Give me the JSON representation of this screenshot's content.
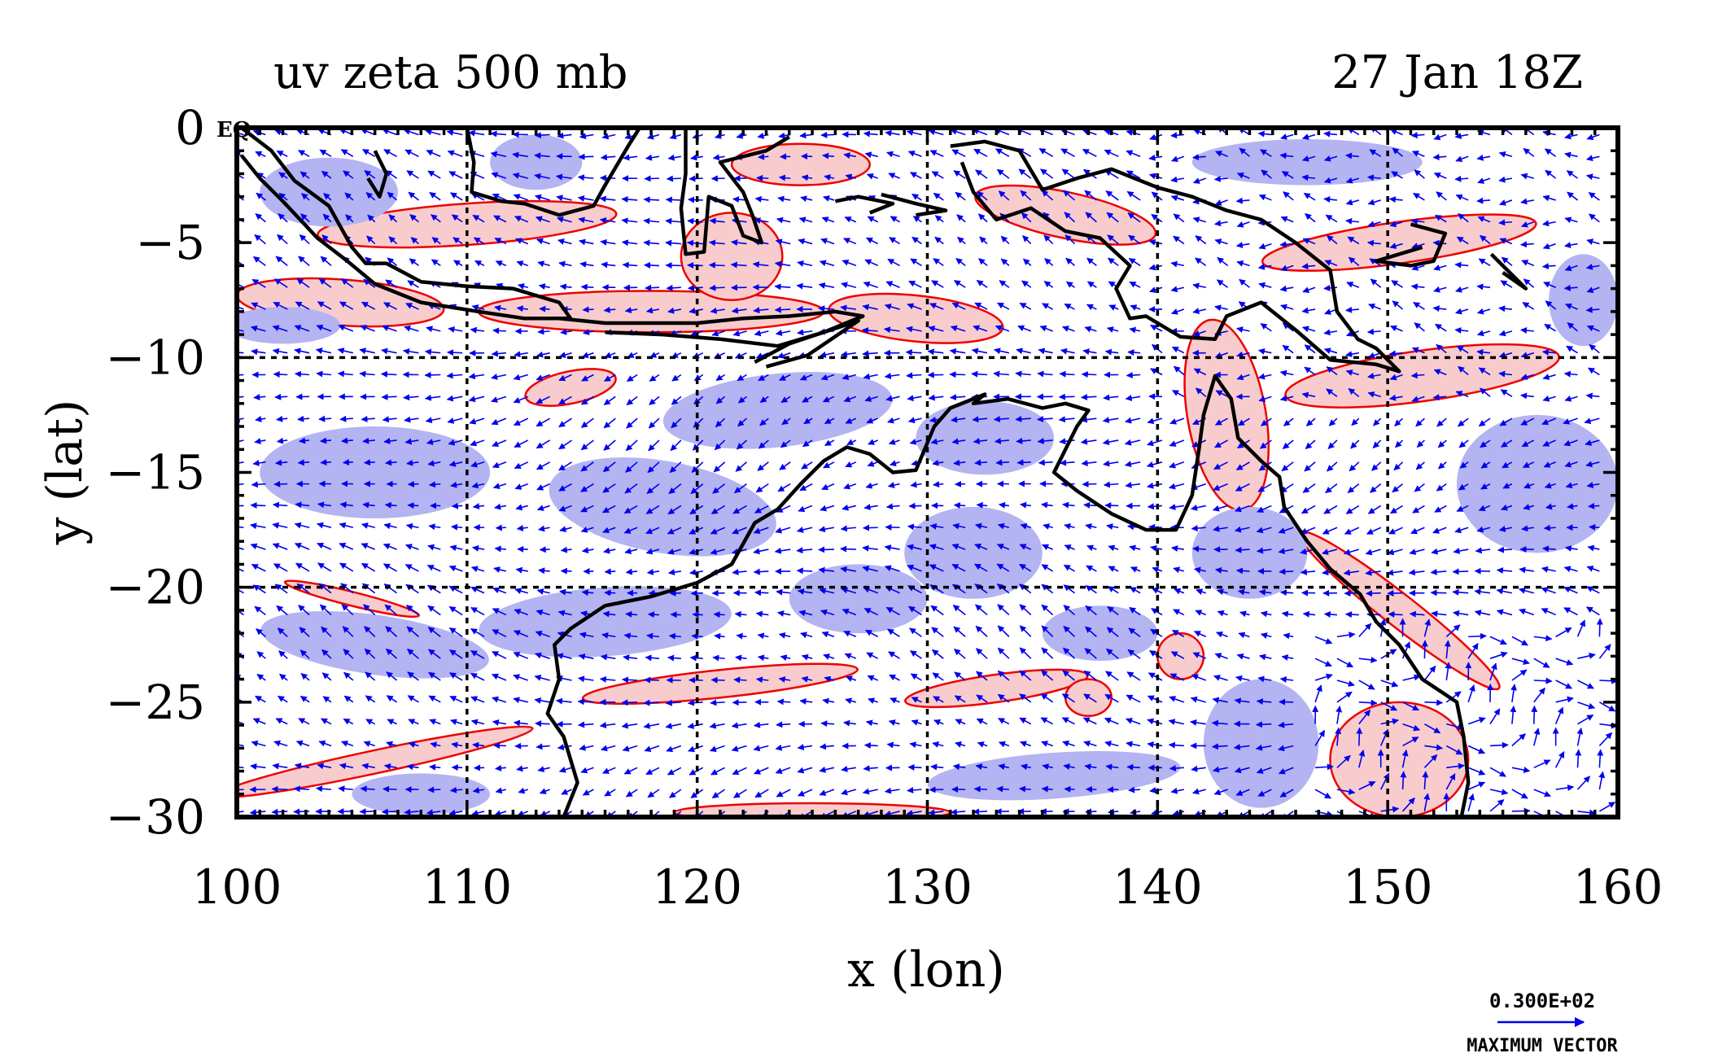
{
  "title_left": "uv zeta 500 mb",
  "title_right": "27 Jan 18Z",
  "equator_label": "EQ",
  "colors": {
    "positive_fill": "#f8cccc",
    "negative_fill": "#b4b4f2",
    "contour_red": "#ee0000",
    "vector_blue": "#0000ee",
    "coast": "#000000",
    "grid": "#000000"
  },
  "legend": {
    "value_label": "0.300E+02",
    "caption": "MAXIMUM VECTOR",
    "max_vector": 30
  },
  "chart_data": {
    "type": "map",
    "xlabel": "x (lon)",
    "ylabel": "y (lat)",
    "xlim": [
      100,
      160
    ],
    "ylim": [
      -30,
      0
    ],
    "xticks": [
      100,
      110,
      120,
      130,
      140,
      150,
      160
    ],
    "yticks": [
      0,
      -5,
      -10,
      -15,
      -20,
      -25,
      -30
    ],
    "xtick_labels": [
      "100",
      "110",
      "120",
      "130",
      "140",
      "150",
      "160"
    ],
    "ytick_labels": [
      "0",
      "−5",
      "−10",
      "−15",
      "−20",
      "−25",
      "−30"
    ],
    "gridlines": {
      "lon": [
        110,
        120,
        130,
        140,
        150
      ],
      "lat": [
        -10,
        -20
      ]
    },
    "coastlines": [
      [
        [
          100.2,
          0.0
        ],
        [
          101.5,
          -1.0
        ],
        [
          102.5,
          -2.3
        ],
        [
          104.0,
          -3.4
        ],
        [
          105.0,
          -5.2
        ],
        [
          105.6,
          -5.9
        ],
        [
          106.5,
          -5.9
        ],
        [
          108.0,
          -6.7
        ],
        [
          110.0,
          -6.9
        ],
        [
          112.0,
          -7.0
        ],
        [
          114.0,
          -7.6
        ],
        [
          114.5,
          -8.3
        ],
        [
          112.5,
          -8.3
        ],
        [
          110.5,
          -8.0
        ],
        [
          108.0,
          -7.6
        ],
        [
          106.0,
          -6.8
        ],
        [
          104.8,
          -5.8
        ],
        [
          103.5,
          -4.8
        ],
        [
          102.0,
          -3.2
        ],
        [
          101.0,
          -2.2
        ],
        [
          100.2,
          -1.2
        ]
      ],
      [
        [
          106.0,
          -1.0
        ],
        [
          106.5,
          -2.0
        ],
        [
          106.2,
          -3.0
        ],
        [
          105.7,
          -2.2
        ]
      ],
      [
        [
          114.0,
          -8.3
        ],
        [
          116.0,
          -8.5
        ],
        [
          118.0,
          -8.5
        ],
        [
          120.0,
          -8.5
        ],
        [
          122.0,
          -8.3
        ],
        [
          124.0,
          -8.2
        ],
        [
          126.0,
          -8.0
        ],
        [
          127.2,
          -8.2
        ],
        [
          125.5,
          -8.9
        ],
        [
          123.5,
          -9.5
        ],
        [
          121.0,
          -9.2
        ],
        [
          118.5,
          -9.0
        ],
        [
          116.0,
          -8.9
        ]
      ],
      [
        [
          122.5,
          -10.2
        ],
        [
          124.0,
          -9.4
        ],
        [
          125.5,
          -8.9
        ],
        [
          127.0,
          -8.4
        ],
        [
          124.8,
          -9.9
        ],
        [
          123.0,
          -10.4
        ]
      ],
      [
        [
          110.0,
          0.0
        ],
        [
          110.3,
          -1.5
        ],
        [
          110.2,
          -2.8
        ],
        [
          111.5,
          -3.2
        ],
        [
          112.5,
          -3.3
        ],
        [
          114.0,
          -3.8
        ],
        [
          115.5,
          -3.4
        ],
        [
          116.0,
          -2.5
        ],
        [
          117.0,
          -0.8
        ],
        [
          117.5,
          0.0
        ]
      ],
      [
        [
          119.5,
          0.0
        ],
        [
          119.5,
          -2.0
        ],
        [
          119.3,
          -3.5
        ],
        [
          119.5,
          -5.5
        ],
        [
          120.3,
          -5.4
        ],
        [
          120.5,
          -3.0
        ],
        [
          121.5,
          -3.4
        ],
        [
          122.0,
          -4.7
        ],
        [
          122.8,
          -5.0
        ],
        [
          122.4,
          -3.8
        ],
        [
          122.0,
          -2.8
        ],
        [
          121.0,
          -1.5
        ],
        [
          123.0,
          -1.0
        ],
        [
          124.0,
          -0.4
        ]
      ],
      [
        [
          126.0,
          -3.2
        ],
        [
          127.0,
          -3.0
        ],
        [
          128.5,
          -3.3
        ],
        [
          127.5,
          -3.7
        ]
      ],
      [
        [
          128.0,
          -2.9
        ],
        [
          129.5,
          -3.3
        ],
        [
          130.8,
          -3.6
        ],
        [
          129.5,
          -3.8
        ]
      ],
      [
        [
          131.0,
          -0.8
        ],
        [
          132.5,
          -0.6
        ],
        [
          134.0,
          -1.0
        ],
        [
          135.0,
          -2.7
        ],
        [
          136.5,
          -2.2
        ],
        [
          138.0,
          -1.8
        ],
        [
          140.0,
          -2.6
        ],
        [
          141.5,
          -3.0
        ],
        [
          143.0,
          -3.6
        ],
        [
          144.5,
          -4.0
        ],
        [
          146.0,
          -5.0
        ],
        [
          147.5,
          -6.2
        ],
        [
          147.8,
          -8.0
        ],
        [
          148.7,
          -9.2
        ],
        [
          149.5,
          -9.6
        ],
        [
          150.5,
          -10.6
        ],
        [
          149.5,
          -10.3
        ],
        [
          147.5,
          -10.1
        ],
        [
          146.0,
          -8.8
        ],
        [
          144.5,
          -7.6
        ],
        [
          143.0,
          -8.2
        ],
        [
          142.5,
          -9.2
        ],
        [
          141.0,
          -9.1
        ],
        [
          139.5,
          -8.2
        ],
        [
          138.8,
          -8.3
        ],
        [
          138.2,
          -7.0
        ],
        [
          138.8,
          -6.0
        ],
        [
          137.5,
          -4.8
        ],
        [
          136.0,
          -4.5
        ],
        [
          134.5,
          -3.5
        ],
        [
          133.0,
          -4.0
        ],
        [
          132.0,
          -2.8
        ],
        [
          131.5,
          -1.5
        ]
      ],
      [
        [
          151.0,
          -4.2
        ],
        [
          152.5,
          -4.6
        ],
        [
          152.0,
          -5.8
        ],
        [
          151.0,
          -6.0
        ],
        [
          149.5,
          -5.8
        ],
        [
          151.5,
          -5.2
        ]
      ],
      [
        [
          154.5,
          -5.5
        ],
        [
          155.5,
          -6.5
        ],
        [
          156.0,
          -7.0
        ],
        [
          155.0,
          -6.3
        ]
      ],
      [
        [
          114.2,
          -30.0
        ],
        [
          114.8,
          -28.5
        ],
        [
          114.2,
          -26.5
        ],
        [
          113.5,
          -25.5
        ],
        [
          114.0,
          -24.0
        ],
        [
          113.8,
          -22.5
        ],
        [
          114.5,
          -21.8
        ],
        [
          116.0,
          -20.8
        ],
        [
          118.0,
          -20.4
        ],
        [
          120.0,
          -19.8
        ],
        [
          121.5,
          -19.0
        ],
        [
          122.5,
          -17.2
        ],
        [
          123.5,
          -16.6
        ],
        [
          124.5,
          -15.5
        ],
        [
          125.5,
          -14.5
        ],
        [
          126.5,
          -13.9
        ],
        [
          127.5,
          -14.2
        ],
        [
          128.5,
          -15.0
        ],
        [
          129.5,
          -14.9
        ],
        [
          130.3,
          -13.0
        ],
        [
          131.0,
          -12.2
        ],
        [
          132.5,
          -11.6
        ],
        [
          132.0,
          -12.0
        ],
        [
          133.5,
          -11.8
        ],
        [
          135.0,
          -12.2
        ],
        [
          136.0,
          -12.0
        ],
        [
          137.0,
          -12.3
        ],
        [
          136.5,
          -13.0
        ],
        [
          136.0,
          -14.0
        ],
        [
          135.5,
          -15.0
        ],
        [
          136.5,
          -15.8
        ],
        [
          138.0,
          -16.8
        ],
        [
          139.5,
          -17.5
        ],
        [
          140.8,
          -17.5
        ],
        [
          141.5,
          -16.0
        ],
        [
          141.8,
          -14.0
        ],
        [
          142.0,
          -12.5
        ],
        [
          142.5,
          -10.8
        ],
        [
          143.2,
          -11.8
        ],
        [
          143.5,
          -13.5
        ],
        [
          144.5,
          -14.5
        ],
        [
          145.3,
          -15.2
        ],
        [
          145.5,
          -16.5
        ],
        [
          146.5,
          -18.0
        ],
        [
          147.5,
          -19.2
        ],
        [
          148.8,
          -20.3
        ],
        [
          149.5,
          -21.5
        ],
        [
          150.5,
          -22.5
        ],
        [
          151.5,
          -24.0
        ],
        [
          153.0,
          -25.0
        ],
        [
          153.3,
          -26.5
        ],
        [
          153.5,
          -28.5
        ],
        [
          153.2,
          -30.0
        ]
      ]
    ],
    "vorticity_positive": [
      {
        "lon": 110.0,
        "lat": -4.2,
        "rx": 6.5,
        "ry": 0.9,
        "rot": -4
      },
      {
        "lon": 104.5,
        "lat": -7.6,
        "rx": 4.5,
        "ry": 1.0,
        "rot": 4
      },
      {
        "lon": 118.0,
        "lat": -8.0,
        "rx": 7.5,
        "ry": 0.9,
        "rot": 0
      },
      {
        "lon": 114.5,
        "lat": -11.3,
        "rx": 2.0,
        "ry": 0.7,
        "rot": -12
      },
      {
        "lon": 121.5,
        "lat": -5.6,
        "rx": 2.2,
        "ry": 1.9,
        "rot": 0
      },
      {
        "lon": 129.5,
        "lat": -8.3,
        "rx": 3.8,
        "ry": 1.0,
        "rot": 6
      },
      {
        "lon": 136.0,
        "lat": -3.8,
        "rx": 4.0,
        "ry": 1.0,
        "rot": 12
      },
      {
        "lon": 124.5,
        "lat": -1.6,
        "rx": 3.0,
        "ry": 0.9,
        "rot": 0
      },
      {
        "lon": 150.5,
        "lat": -5.0,
        "rx": 6.0,
        "ry": 0.9,
        "rot": -8
      },
      {
        "lon": 151.5,
        "lat": -10.8,
        "rx": 6.0,
        "ry": 1.1,
        "rot": -8
      },
      {
        "lon": 143.0,
        "lat": -12.5,
        "rx": 1.7,
        "ry": 4.2,
        "rot": -10
      },
      {
        "lon": 150.5,
        "lat": -21.0,
        "rx": 5.5,
        "ry": 0.7,
        "rot": 38
      },
      {
        "lon": 106.0,
        "lat": -27.6,
        "rx": 7.0,
        "ry": 0.5,
        "rot": -12
      },
      {
        "lon": 121.0,
        "lat": -24.2,
        "rx": 6.0,
        "ry": 0.6,
        "rot": -6
      },
      {
        "lon": 133.0,
        "lat": -24.4,
        "rx": 4.0,
        "ry": 0.6,
        "rot": -8
      },
      {
        "lon": 137.0,
        "lat": -24.8,
        "rx": 1.0,
        "ry": 0.8,
        "rot": 0
      },
      {
        "lon": 141.0,
        "lat": -23.0,
        "rx": 1.0,
        "ry": 1.0,
        "rot": 0
      },
      {
        "lon": 150.5,
        "lat": -27.5,
        "rx": 3.0,
        "ry": 2.5,
        "rot": 0
      },
      {
        "lon": 125.0,
        "lat": -29.8,
        "rx": 6.0,
        "ry": 0.4,
        "rot": 0
      },
      {
        "lon": 105.0,
        "lat": -20.5,
        "rx": 3.0,
        "ry": 0.3,
        "rot": 14
      }
    ],
    "vorticity_negative": [
      {
        "lon": 104.0,
        "lat": -2.8,
        "rx": 3.0,
        "ry": 1.5,
        "rot": 0
      },
      {
        "lon": 102.0,
        "lat": -8.6,
        "rx": 2.5,
        "ry": 0.8,
        "rot": 0
      },
      {
        "lon": 123.5,
        "lat": -12.3,
        "rx": 5.0,
        "ry": 1.6,
        "rot": -6
      },
      {
        "lon": 106.0,
        "lat": -15.0,
        "rx": 5.0,
        "ry": 2.0,
        "rot": 0
      },
      {
        "lon": 118.5,
        "lat": -16.5,
        "rx": 5.0,
        "ry": 2.0,
        "rot": 10
      },
      {
        "lon": 132.0,
        "lat": -18.5,
        "rx": 3.0,
        "ry": 2.0,
        "rot": 0
      },
      {
        "lon": 127.0,
        "lat": -20.5,
        "rx": 3.0,
        "ry": 1.5,
        "rot": 0
      },
      {
        "lon": 116.0,
        "lat": -21.5,
        "rx": 5.5,
        "ry": 1.5,
        "rot": -4
      },
      {
        "lon": 106.0,
        "lat": -22.5,
        "rx": 5.0,
        "ry": 1.3,
        "rot": 8
      },
      {
        "lon": 137.5,
        "lat": -22.0,
        "rx": 2.5,
        "ry": 1.2,
        "rot": 0
      },
      {
        "lon": 144.5,
        "lat": -26.8,
        "rx": 2.5,
        "ry": 2.8,
        "rot": 0
      },
      {
        "lon": 156.5,
        "lat": -15.5,
        "rx": 3.5,
        "ry": 3.0,
        "rot": 0
      },
      {
        "lon": 144.0,
        "lat": -18.5,
        "rx": 2.5,
        "ry": 2.0,
        "rot": 0
      },
      {
        "lon": 132.5,
        "lat": -13.5,
        "rx": 3.0,
        "ry": 1.6,
        "rot": 0
      },
      {
        "lon": 135.5,
        "lat": -28.2,
        "rx": 5.5,
        "ry": 1.0,
        "rot": -4
      },
      {
        "lon": 108.0,
        "lat": -29.0,
        "rx": 3.0,
        "ry": 0.9,
        "rot": 0
      },
      {
        "lon": 146.5,
        "lat": -1.5,
        "rx": 5.0,
        "ry": 1.0,
        "rot": 0
      },
      {
        "lon": 158.5,
        "lat": -7.5,
        "rx": 1.5,
        "ry": 2.0,
        "rot": 0
      },
      {
        "lon": 113.0,
        "lat": -1.5,
        "rx": 2.0,
        "ry": 1.2,
        "rot": 0
      }
    ]
  }
}
